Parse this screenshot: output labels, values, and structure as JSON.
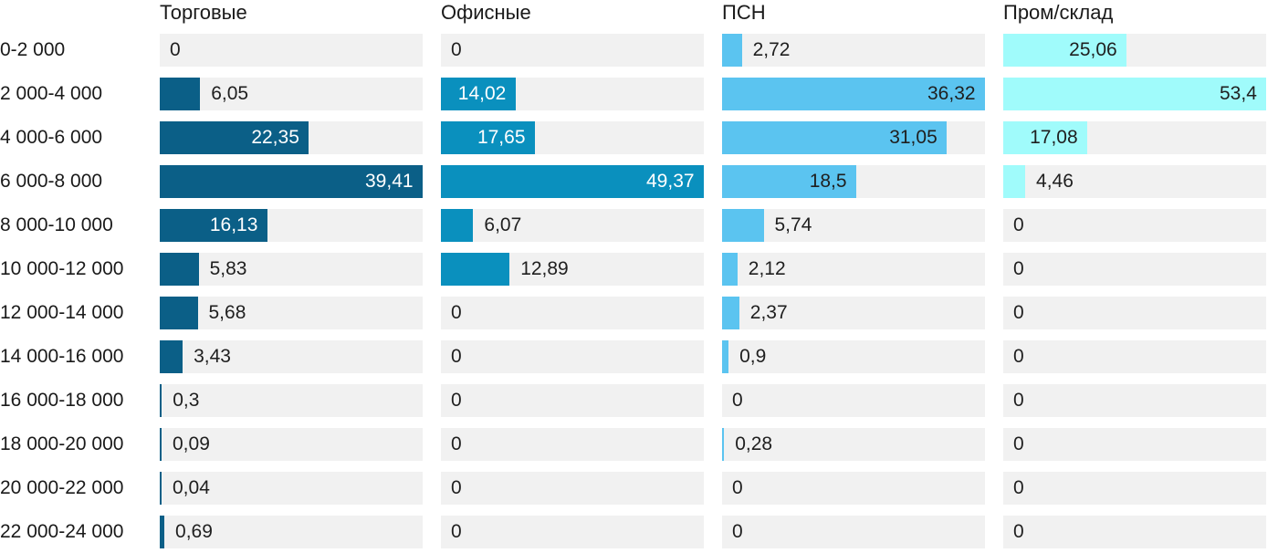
{
  "chart_data": {
    "type": "bar",
    "orientation": "horizontal",
    "scaling": "each column normalized to its own max value",
    "grid": false,
    "track_color": "#f1f1f1",
    "text_color": "#1f1f1f",
    "categories": [
      "0-2 000",
      "2 000-4 000",
      "4 000-6 000",
      "6 000-8 000",
      "8 000-10 000",
      "10 000-12 000",
      "12 000-14 000",
      "14 000-16 000",
      "16 000-18 000",
      "18 000-20 000",
      "20 000-22 000",
      "22 000-24 000"
    ],
    "series": [
      {
        "name": "Торговые",
        "color": "#0b5f87",
        "inside_text_color": "#ffffff",
        "values": [
          0,
          6.05,
          22.35,
          39.41,
          16.13,
          5.83,
          5.68,
          3.43,
          0.3,
          0.09,
          0.04,
          0.69
        ],
        "labels": [
          "0",
          "6,05",
          "22,35",
          "39,41",
          "16,13",
          "5,83",
          "5,68",
          "3,43",
          "0,3",
          "0,09",
          "0,04",
          "0,69"
        ]
      },
      {
        "name": "Офисные",
        "color": "#0a90be",
        "inside_text_color": "#ffffff",
        "values": [
          0,
          14.02,
          17.65,
          49.37,
          6.07,
          12.89,
          0,
          0,
          0,
          0,
          0,
          0
        ],
        "labels": [
          "0",
          "14,02",
          "17,65",
          "49,37",
          "6,07",
          "12,89",
          "0",
          "0",
          "0",
          "0",
          "0",
          "0"
        ]
      },
      {
        "name": "ПСН",
        "color": "#5bc4f0",
        "inside_text_color": "#1f1f1f",
        "values": [
          2.72,
          36.32,
          31.05,
          18.5,
          5.74,
          2.12,
          2.37,
          0.9,
          0,
          0.28,
          0,
          0
        ],
        "labels": [
          "2,72",
          "36,32",
          "31,05",
          "18,5",
          "5,74",
          "2,12",
          "2,37",
          "0,9",
          "0",
          "0,28",
          "0",
          "0"
        ]
      },
      {
        "name": "Пром/склад",
        "color": "#a0fbfb",
        "inside_text_color": "#1f1f1f",
        "values": [
          25.06,
          53.4,
          17.08,
          4.46,
          0,
          0,
          0,
          0,
          0,
          0,
          0,
          0
        ],
        "labels": [
          "25,06",
          "53,4",
          "17,08",
          "4,46",
          "0",
          "0",
          "0",
          "0",
          "0",
          "0",
          "0",
          "0"
        ]
      }
    ]
  }
}
